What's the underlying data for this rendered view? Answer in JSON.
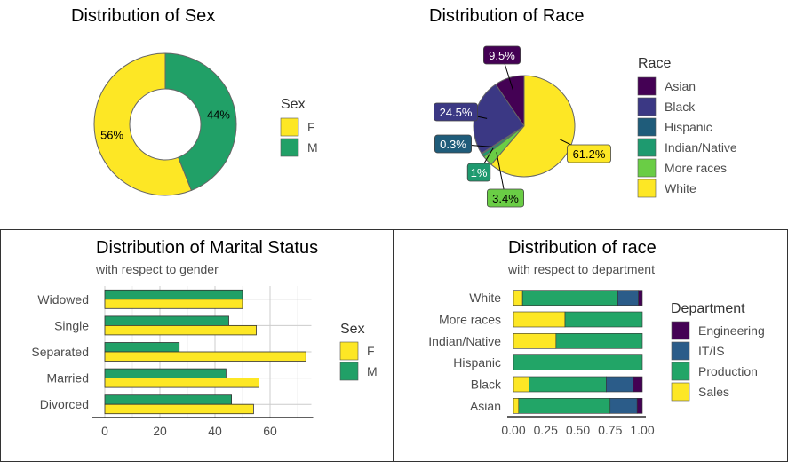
{
  "colors": {
    "F": "#FDE725",
    "M": "#21A067",
    "Asian": "#440154",
    "Black": "#3B3884",
    "Hispanic": "#1F5C7A",
    "Indian/Native": "#1E9A6F",
    "More races": "#6ACD45",
    "White": "#FDE725",
    "Engineering": "#440154",
    "IT/IS": "#2B5C89",
    "Production": "#22A567",
    "Sales": "#FDE725"
  },
  "chart_data": [
    {
      "id": "sex",
      "type": "pie",
      "title": "Distribution of Sex",
      "legend_title": "Sex",
      "legend_position": "right",
      "slices": [
        {
          "name": "F",
          "value": 56,
          "label": "56%"
        },
        {
          "name": "M",
          "value": 44,
          "label": "44%"
        }
      ]
    },
    {
      "id": "race",
      "type": "pie",
      "title": "Distribution of Race",
      "legend_title": "Race",
      "legend_position": "right",
      "slices": [
        {
          "name": "Asian",
          "value": 9.5,
          "label": "9.5%"
        },
        {
          "name": "Black",
          "value": 24.5,
          "label": "24.5%"
        },
        {
          "name": "Hispanic",
          "value": 0.3,
          "label": "0.3%"
        },
        {
          "name": "Indian/Native",
          "value": 1,
          "label": "1%"
        },
        {
          "name": "More races",
          "value": 3.4,
          "label": "3.4%"
        },
        {
          "name": "White",
          "value": 61.2,
          "label": "61.2%"
        }
      ]
    },
    {
      "id": "marital",
      "type": "bar",
      "orientation": "horizontal",
      "title": "Distribution of Marital Status",
      "subtitle": "with respect to gender",
      "legend_title": "Sex",
      "legend_position": "right",
      "categories": [
        "Divorced",
        "Married",
        "Separated",
        "Single",
        "Widowed"
      ],
      "series": [
        {
          "name": "F",
          "values": [
            54,
            56,
            73,
            55,
            50
          ]
        },
        {
          "name": "M",
          "values": [
            46,
            44,
            27,
            45,
            50
          ]
        }
      ],
      "xlim": [
        0,
        75
      ],
      "xticks": [
        0,
        20,
        40,
        60
      ],
      "grid": true
    },
    {
      "id": "racedept",
      "type": "bar",
      "orientation": "horizontal",
      "stacked": true,
      "title": "Distribution of race",
      "subtitle": "with respect to department",
      "legend_title": "Department",
      "legend_position": "right",
      "categories": [
        "Asian",
        "Black",
        "Hispanic",
        "Indian/Native",
        "More races",
        "White"
      ],
      "series": [
        {
          "name": "Sales",
          "values": [
            0.04,
            0.12,
            0.0,
            0.33,
            0.4,
            0.07
          ]
        },
        {
          "name": "Production",
          "values": [
            0.71,
            0.6,
            1.0,
            0.67,
            0.6,
            0.74
          ]
        },
        {
          "name": "IT/IS",
          "values": [
            0.21,
            0.21,
            0.0,
            0.0,
            0.0,
            0.16
          ]
        },
        {
          "name": "Engineering",
          "values": [
            0.04,
            0.07,
            0.0,
            0.0,
            0.0,
            0.03
          ]
        }
      ],
      "xlim": [
        0,
        1
      ],
      "xticks": [
        "0.00",
        "0.25",
        "0.50",
        "0.75",
        "1.00"
      ],
      "grid": false
    }
  ]
}
